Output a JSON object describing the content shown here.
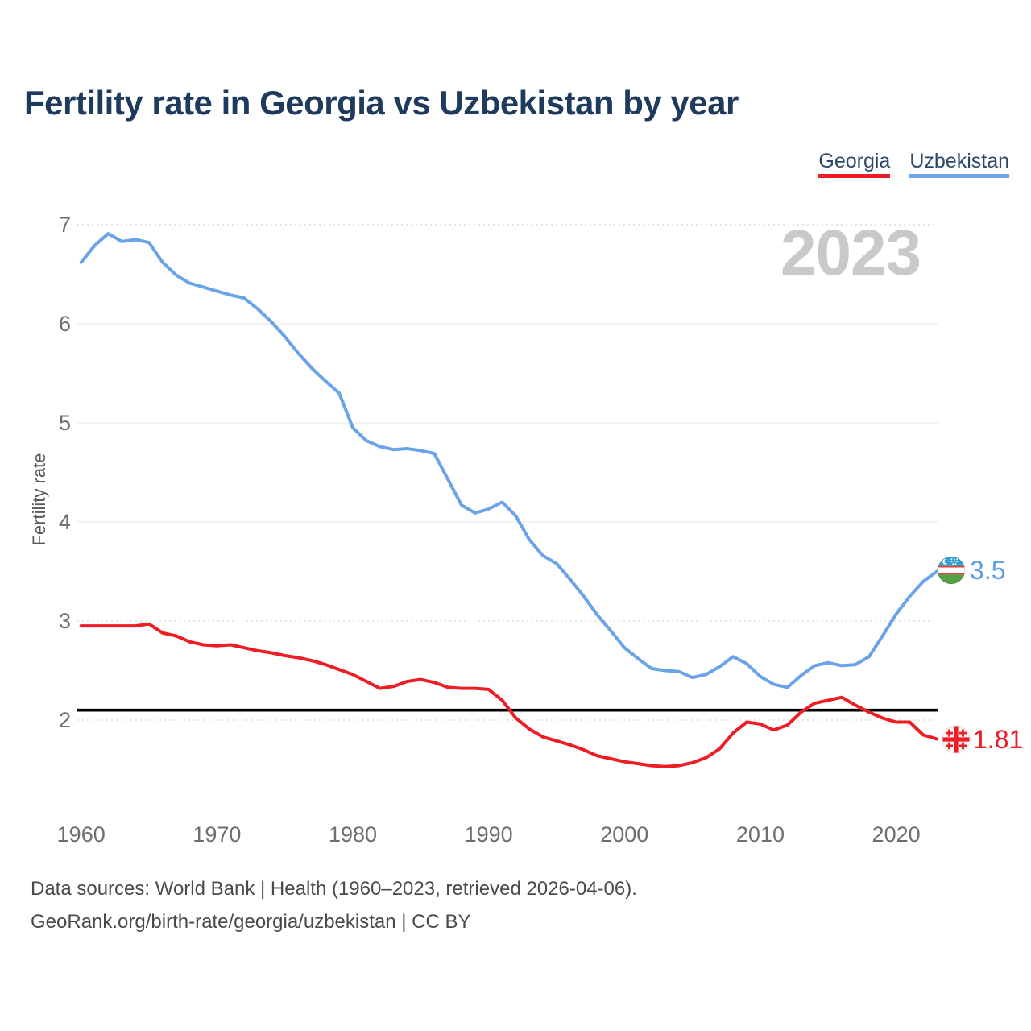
{
  "page": {
    "title": "Fertility rate in Georgia vs Uzbekistan by year",
    "watermark": "2023",
    "footer_line1": "Data sources: World Bank | Health (1960–2023, retrieved 2026-04-06).",
    "footer_line2": "GeoRank.org/birth-rate/georgia/uzbekistan | CC BY"
  },
  "legend": [
    {
      "label": "Georgia",
      "color": "#ee1c25"
    },
    {
      "label": "Uzbekistan",
      "color": "#6aa3e8"
    }
  ],
  "chart_data": {
    "type": "line",
    "title": "Fertility rate in Georgia vs Uzbekistan by year",
    "xlabel": "",
    "ylabel": "Fertility rate",
    "x_ticks": [
      1960,
      1970,
      1980,
      1990,
      2000,
      2010,
      2020
    ],
    "y_ticks": [
      2,
      3,
      4,
      5,
      6,
      7
    ],
    "y_ticks_dotted": [
      2,
      3,
      7
    ],
    "xlim": [
      1960,
      2023
    ],
    "ylim": [
      1.45,
      7.05
    ],
    "grid": true,
    "legend_position": "top-right",
    "reference_line": {
      "value": 2.1,
      "color": "#000000"
    },
    "x": [
      1960,
      1961,
      1962,
      1963,
      1964,
      1965,
      1966,
      1967,
      1968,
      1969,
      1970,
      1971,
      1972,
      1973,
      1974,
      1975,
      1976,
      1977,
      1978,
      1979,
      1980,
      1981,
      1982,
      1983,
      1984,
      1985,
      1986,
      1987,
      1988,
      1989,
      1990,
      1991,
      1992,
      1993,
      1994,
      1995,
      1996,
      1997,
      1998,
      1999,
      2000,
      2001,
      2002,
      2003,
      2004,
      2005,
      2006,
      2007,
      2008,
      2009,
      2010,
      2011,
      2012,
      2013,
      2014,
      2015,
      2016,
      2017,
      2018,
      2019,
      2020,
      2021,
      2022,
      2023
    ],
    "series": [
      {
        "name": "Georgia",
        "color": "#ee1c25",
        "end_label": "1.81",
        "end_value": 1.81,
        "values": [
          2.95,
          2.95,
          2.95,
          2.95,
          2.95,
          2.97,
          2.88,
          2.85,
          2.79,
          2.76,
          2.75,
          2.76,
          2.73,
          2.7,
          2.68,
          2.65,
          2.63,
          2.6,
          2.56,
          2.51,
          2.46,
          2.39,
          2.32,
          2.34,
          2.39,
          2.41,
          2.38,
          2.33,
          2.32,
          2.32,
          2.31,
          2.2,
          2.02,
          1.91,
          1.83,
          1.79,
          1.75,
          1.7,
          1.64,
          1.61,
          1.58,
          1.56,
          1.54,
          1.53,
          1.54,
          1.57,
          1.62,
          1.71,
          1.87,
          1.98,
          1.96,
          1.9,
          1.95,
          2.08,
          2.17,
          2.2,
          2.23,
          2.15,
          2.08,
          2.02,
          1.98,
          1.98,
          1.85,
          1.81
        ]
      },
      {
        "name": "Uzbekistan",
        "color": "#6aa3e8",
        "end_label": "3.5",
        "end_value": 3.5,
        "values": [
          6.62,
          6.79,
          6.91,
          6.83,
          6.85,
          6.82,
          6.62,
          6.49,
          6.41,
          6.37,
          6.33,
          6.29,
          6.26,
          6.15,
          6.02,
          5.87,
          5.7,
          5.55,
          5.42,
          5.3,
          4.95,
          4.82,
          4.76,
          4.73,
          4.74,
          4.72,
          4.69,
          4.43,
          4.17,
          4.09,
          4.13,
          4.2,
          4.06,
          3.82,
          3.66,
          3.58,
          3.42,
          3.25,
          3.06,
          2.9,
          2.73,
          2.62,
          2.52,
          2.5,
          2.49,
          2.43,
          2.46,
          2.54,
          2.64,
          2.57,
          2.44,
          2.36,
          2.33,
          2.45,
          2.55,
          2.58,
          2.55,
          2.56,
          2.64,
          2.85,
          3.07,
          3.25,
          3.4,
          3.5
        ]
      }
    ]
  }
}
